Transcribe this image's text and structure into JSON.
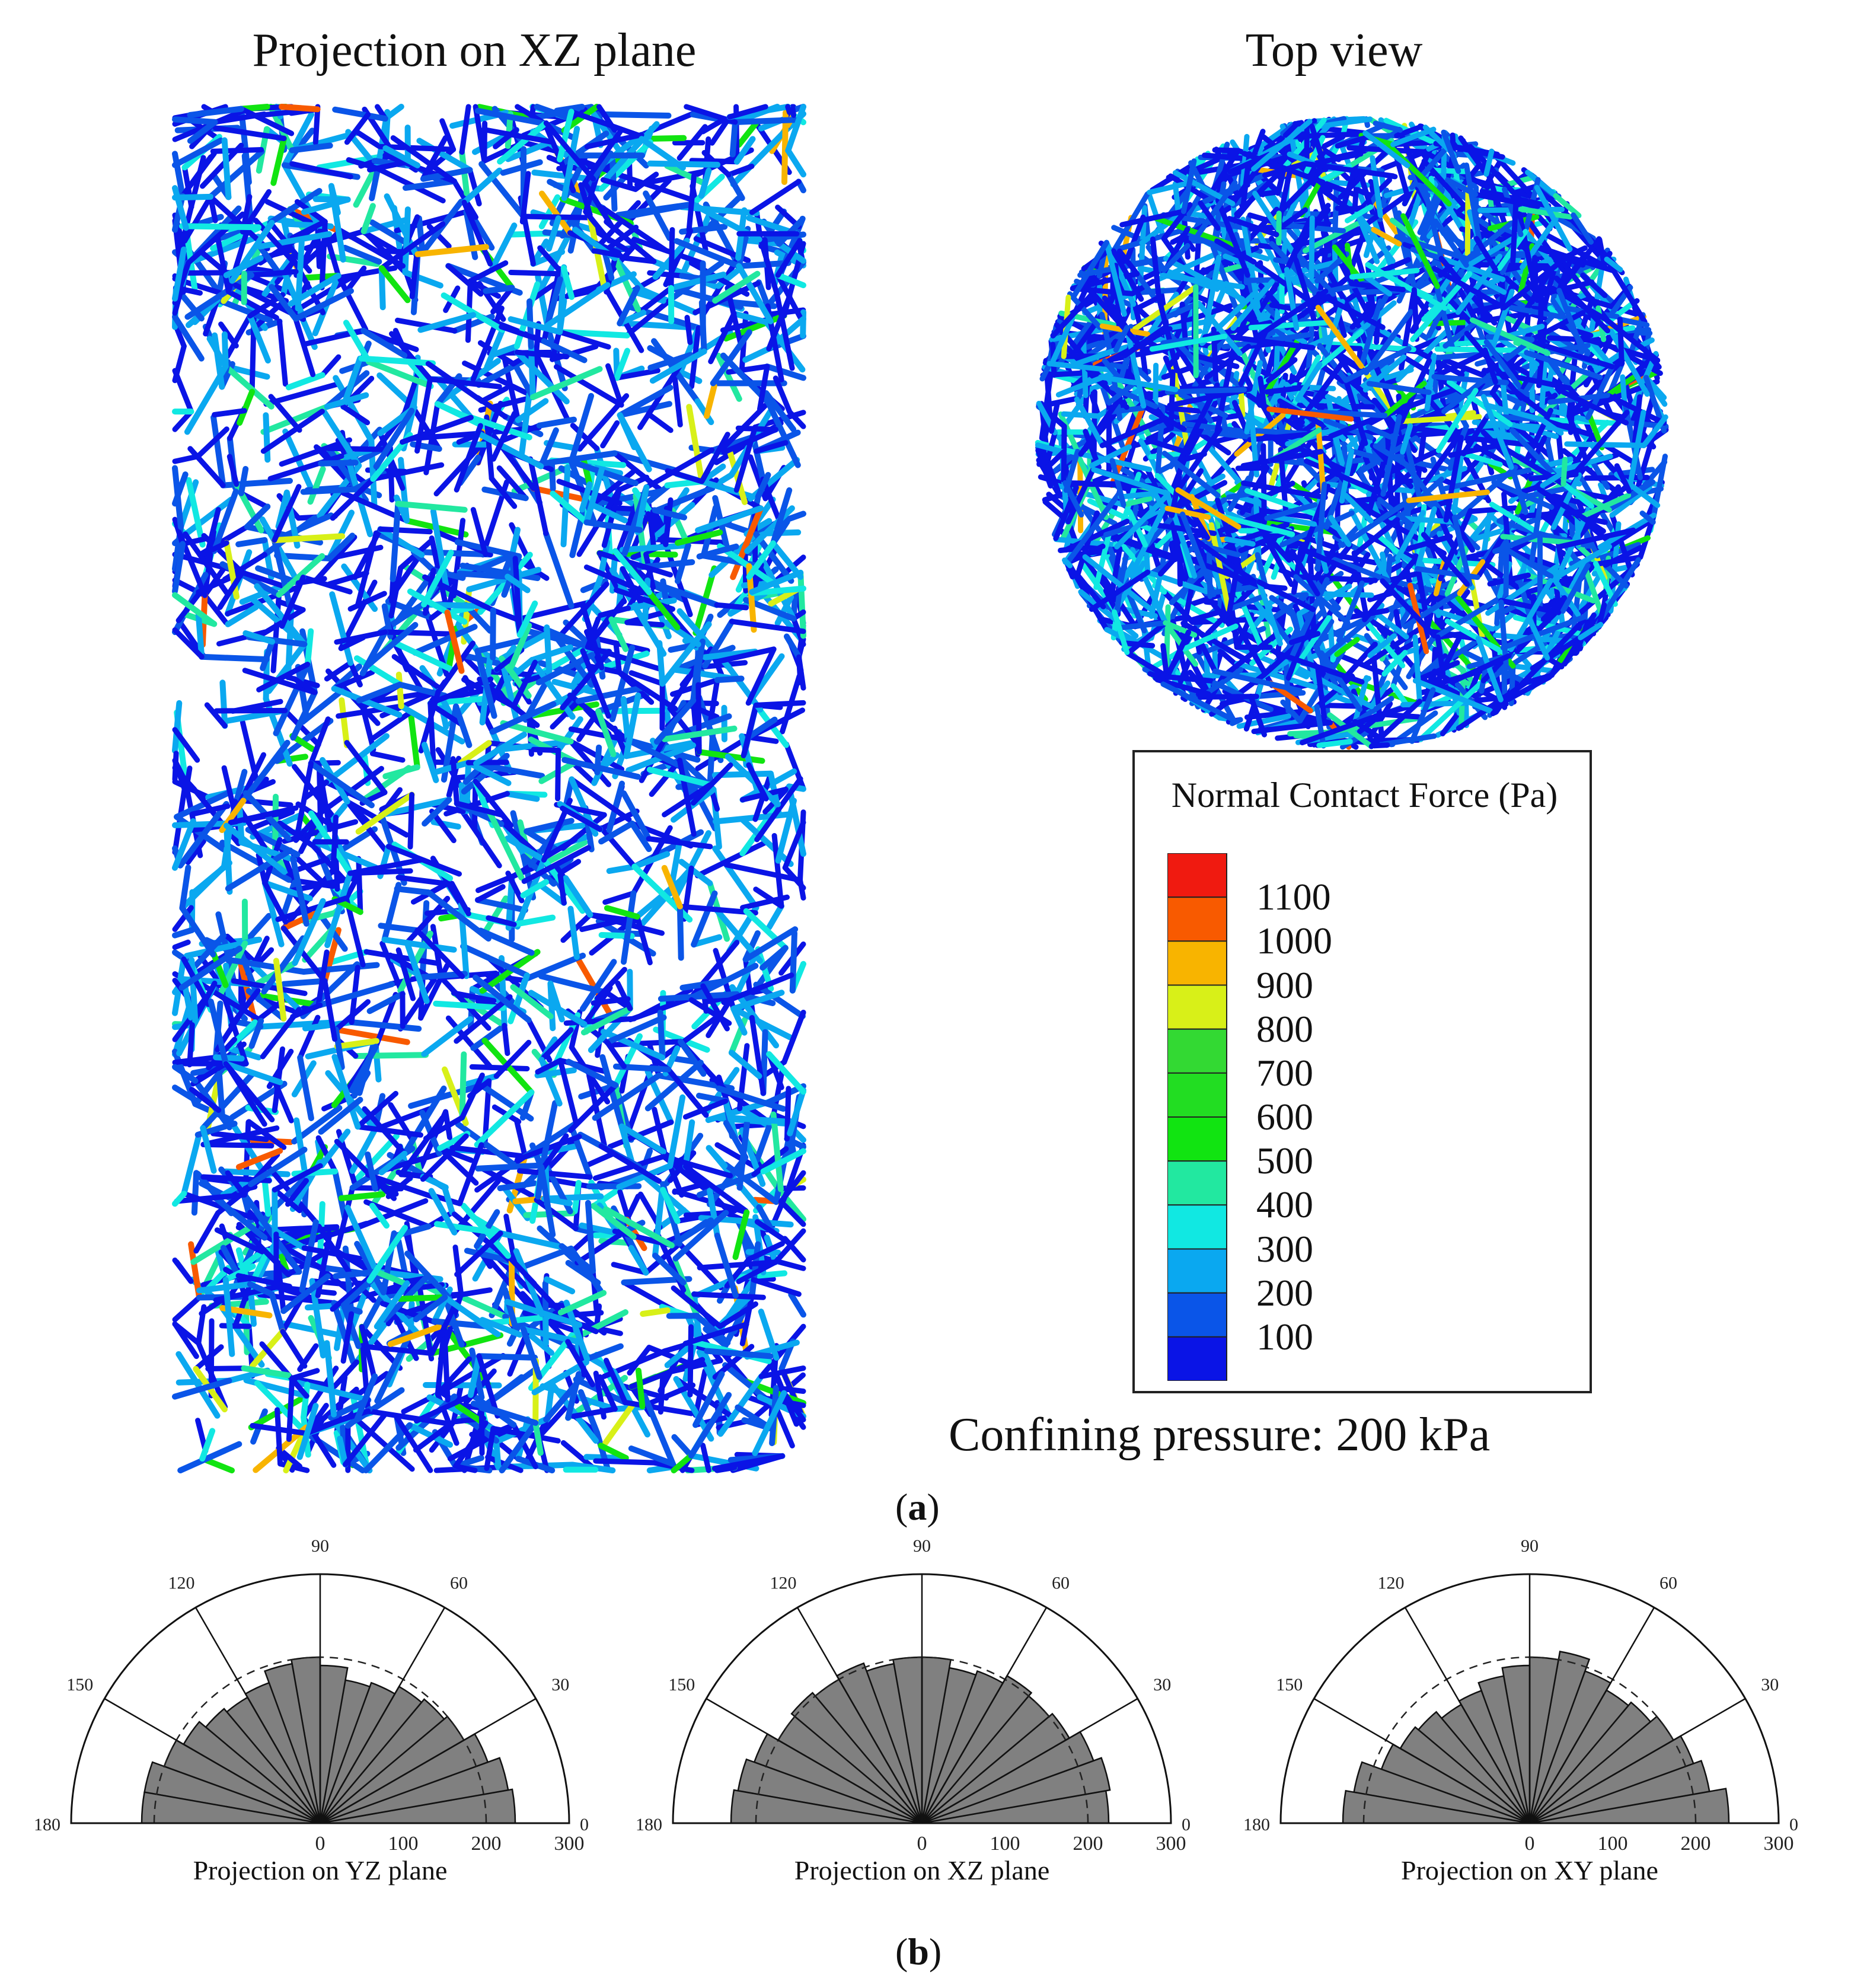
{
  "panel_a": {
    "label_open": "(",
    "label_letter": "a",
    "label_close": ")",
    "xz_title": "Projection on XZ plane",
    "top_title": "Top view",
    "legend_title": "Normal Contact Force (Pa)",
    "confining": "Confining pressure: 200 kPa"
  },
  "panel_b": {
    "label_open": "(",
    "label_letter": "b",
    "label_close": ")"
  },
  "colors": {
    "scale": [
      "#0a14e6",
      "#0a55e8",
      "#0aa8f0",
      "#11e8e2",
      "#22e8a0",
      "#11e411",
      "#22dd22",
      "#33d933",
      "#d8f018",
      "#f8b400",
      "#f85a00",
      "#f01a10"
    ],
    "bar_fill": "#808080"
  },
  "chart_data": [
    {
      "type": "heatmap",
      "title": "Projection on XZ plane",
      "description_kind": "contact-force-network",
      "legend": {
        "title": "Normal Contact Force (Pa)",
        "labels": [
          "1100",
          "1000",
          "900",
          "800",
          "700",
          "600",
          "500",
          "400",
          "300",
          "200",
          "100"
        ],
        "values": [
          1100,
          1000,
          900,
          800,
          700,
          600,
          500,
          400,
          300,
          200,
          100
        ]
      }
    },
    {
      "type": "heatmap",
      "title": "Top view",
      "description_kind": "contact-force-network"
    },
    {
      "type": "bar",
      "subtype": "polar-rose",
      "xlabel": "Projection on YZ plane",
      "angle_labels": [
        "180",
        "150",
        "120",
        "90",
        "60",
        "30",
        "0"
      ],
      "radial_labels": [
        "0",
        "100",
        "200",
        "300"
      ],
      "rlim": [
        0,
        300
      ],
      "dashed_circle": 200,
      "bin_width_deg": 10,
      "bin_centers_deg": [
        5,
        15,
        25,
        35,
        45,
        55,
        65,
        75,
        85,
        95,
        105,
        115,
        125,
        135,
        145,
        155,
        165,
        175
      ],
      "values": [
        235,
        230,
        215,
        200,
        195,
        190,
        180,
        175,
        190,
        200,
        195,
        180,
        175,
        180,
        190,
        200,
        215,
        215
      ]
    },
    {
      "type": "bar",
      "subtype": "polar-rose",
      "xlabel": "Projection on XZ plane",
      "angle_labels": [
        "180",
        "150",
        "120",
        "90",
        "60",
        "30",
        "0"
      ],
      "radial_labels": [
        "0",
        "100",
        "200",
        "300"
      ],
      "rlim": [
        0,
        300
      ],
      "dashed_circle": 200,
      "bin_width_deg": 10,
      "bin_centers_deg": [
        5,
        15,
        25,
        35,
        45,
        55,
        65,
        75,
        85,
        95,
        105,
        115,
        125,
        135,
        145,
        155,
        165,
        175
      ],
      "values": [
        225,
        230,
        220,
        205,
        200,
        205,
        195,
        190,
        200,
        200,
        195,
        205,
        200,
        205,
        200,
        215,
        225,
        230
      ]
    },
    {
      "type": "bar",
      "subtype": "polar-rose",
      "xlabel": "Projection on XY plane",
      "angle_labels": [
        "180",
        "150",
        "120",
        "90",
        "60",
        "30",
        "0"
      ],
      "radial_labels": [
        "0",
        "100",
        "200",
        "300"
      ],
      "rlim": [
        0,
        300
      ],
      "dashed_circle": 200,
      "bin_width_deg": 10,
      "bin_centers_deg": [
        5,
        15,
        25,
        35,
        45,
        55,
        65,
        75,
        85,
        95,
        105,
        115,
        125,
        135,
        145,
        155,
        165,
        175
      ],
      "values": [
        240,
        220,
        210,
        200,
        190,
        185,
        195,
        210,
        200,
        190,
        180,
        170,
        165,
        175,
        180,
        190,
        215,
        225
      ]
    }
  ]
}
